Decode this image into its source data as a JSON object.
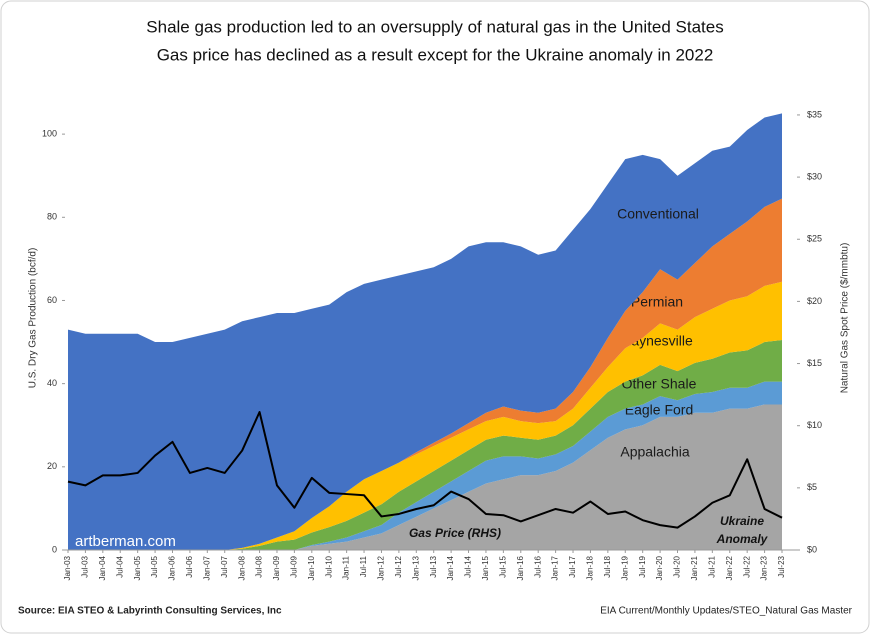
{
  "chart_data": {
    "type": "stacked_area_line",
    "title": "Shale gas production led to an oversupply of natural gas in the United States",
    "subtitle": "Gas price has declined as a result except for the Ukraine anomaly in 2022",
    "y_label": "U.S. Dry Gas Production (bcf/d)",
    "y2_label": "Natural Gas Spot Price ($/mmbtu)",
    "watermark": "artberman.com",
    "annotations": [
      "Ukraine",
      "Anomaly"
    ],
    "source_left": "Source: EIA STEO & Labyrinth Consulting Services, Inc",
    "source_right": "EIA Current/Monthly Updates/STEO_Natural Gas Master",
    "categories": [
      "Jan-03",
      "Jul-03",
      "Jan-04",
      "Jul-04",
      "Jan-05",
      "Jul-05",
      "Jan-06",
      "Jul-06",
      "Jan-07",
      "Jul-07",
      "Jan-08",
      "Jul-08",
      "Jan-09",
      "Jul-09",
      "Jan-10",
      "Jul-10",
      "Jan-11",
      "Jul-11",
      "Jan-12",
      "Jul-12",
      "Jan-13",
      "Jul-13",
      "Jan-14",
      "Jul-14",
      "Jan-15",
      "Jul-15",
      "Jan-16",
      "Jul-16",
      "Jan-17",
      "Jul-17",
      "Jan-18",
      "Jul-18",
      "Jan-19",
      "Jul-19",
      "Jan-20",
      "Jul-20",
      "Jan-21",
      "Jul-21",
      "Jan-22",
      "Jul-22",
      "Jan-23",
      "Jul-23"
    ],
    "stacked": true,
    "series": [
      {
        "name": "Appalachia",
        "color": "#a5a5a5",
        "values": [
          0,
          0,
          0,
          0,
          0,
          0,
          0,
          0,
          0,
          0,
          0,
          0,
          0,
          0,
          1,
          1.5,
          2,
          3,
          4,
          6,
          8,
          10,
          12,
          14,
          16,
          17,
          18,
          18,
          19,
          21,
          24,
          27,
          29,
          30,
          32,
          32,
          33,
          33,
          34,
          34,
          35,
          35
        ]
      },
      {
        "name": "Eagle Ford",
        "color": "#5b9bd5",
        "values": [
          0,
          0,
          0,
          0,
          0,
          0,
          0,
          0,
          0,
          0,
          0,
          0,
          0,
          0,
          0.2,
          0.5,
          1,
          1.5,
          2,
          3,
          3.5,
          4,
          4.5,
          5,
          5.5,
          5.5,
          4.5,
          4,
          4,
          4,
          4.5,
          5,
          5,
          5,
          5,
          4,
          4.5,
          5,
          5,
          5,
          5.5,
          5.5
        ]
      },
      {
        "name": "Other Shale",
        "color": "#70ad47",
        "values": [
          0,
          0,
          0,
          0,
          0,
          0,
          0,
          0,
          0,
          0,
          0.3,
          1,
          2,
          2.5,
          3,
          3.5,
          4,
          4.5,
          5,
          5,
          5,
          5,
          5,
          5,
          5,
          5,
          4.5,
          4.5,
          4.5,
          5,
          5.5,
          6,
          6.5,
          7,
          7.5,
          7,
          7.5,
          8,
          8.5,
          9,
          9.5,
          10
        ]
      },
      {
        "name": "Haynesville",
        "color": "#ffc000",
        "values": [
          0,
          0,
          0,
          0,
          0,
          0,
          0,
          0,
          0,
          0,
          0.2,
          0.5,
          1,
          2,
          3.5,
          5,
          7,
          8,
          8,
          7,
          6.5,
          6,
          5.5,
          5,
          4.5,
          4.5,
          4,
          4,
          3.5,
          4,
          5,
          6,
          8,
          9,
          10,
          10,
          11,
          12,
          12.5,
          13,
          13.5,
          14
        ]
      },
      {
        "name": "Permian",
        "color": "#ed7d31",
        "values": [
          0,
          0,
          0,
          0,
          0,
          0,
          0,
          0,
          0,
          0,
          0,
          0,
          0,
          0,
          0,
          0,
          0,
          0,
          0,
          0,
          0.5,
          0.8,
          1,
          1.5,
          2,
          2.5,
          2.5,
          2.5,
          3,
          4,
          5,
          7,
          9,
          11,
          13,
          12,
          13,
          15,
          16,
          18,
          19,
          20
        ]
      },
      {
        "name": "Conventional",
        "color": "#4472c4",
        "values": [
          53,
          52,
          52,
          52,
          52,
          50,
          50,
          51,
          52,
          53,
          54.5,
          54.5,
          54,
          52.5,
          50.3,
          48.5,
          48,
          47,
          46,
          45,
          43.5,
          42.2,
          42,
          42.5,
          41,
          39.5,
          39.5,
          38,
          38,
          39,
          38,
          37,
          36.5,
          33,
          26.5,
          25,
          24,
          23,
          21,
          22,
          21.5,
          20.5
        ]
      },
      {
        "name": "Gas Price (RHS)",
        "color": "#000000",
        "axis": "y2",
        "values": [
          5.5,
          5.2,
          6,
          6,
          6.2,
          7.6,
          8.7,
          6.2,
          6.6,
          6.2,
          8,
          11.1,
          5.2,
          3.4,
          5.8,
          4.6,
          4.5,
          4.4,
          2.7,
          2.9,
          3.3,
          3.6,
          4.7,
          4.1,
          2.9,
          2.8,
          2.3,
          2.8,
          3.3,
          3,
          3.9,
          2.9,
          3.1,
          2.4,
          2,
          1.8,
          2.7,
          3.8,
          4.4,
          7.3,
          3.3,
          2.6
        ]
      }
    ],
    "ylim": [
      0,
      107
    ],
    "yticks": [
      0,
      20,
      40,
      60,
      80,
      100
    ],
    "y2lim": [
      0,
      35.8
    ],
    "y2ticks": [
      {
        "value": 0,
        "label": "$0"
      },
      {
        "value": 5,
        "label": "$5"
      },
      {
        "value": 10,
        "label": "$10"
      },
      {
        "value": 15,
        "label": "$15"
      },
      {
        "value": 20,
        "label": "$20"
      },
      {
        "value": 25,
        "label": "$25"
      },
      {
        "value": 30,
        "label": "$30"
      },
      {
        "value": 35,
        "label": "$35"
      }
    ],
    "grid": false
  }
}
